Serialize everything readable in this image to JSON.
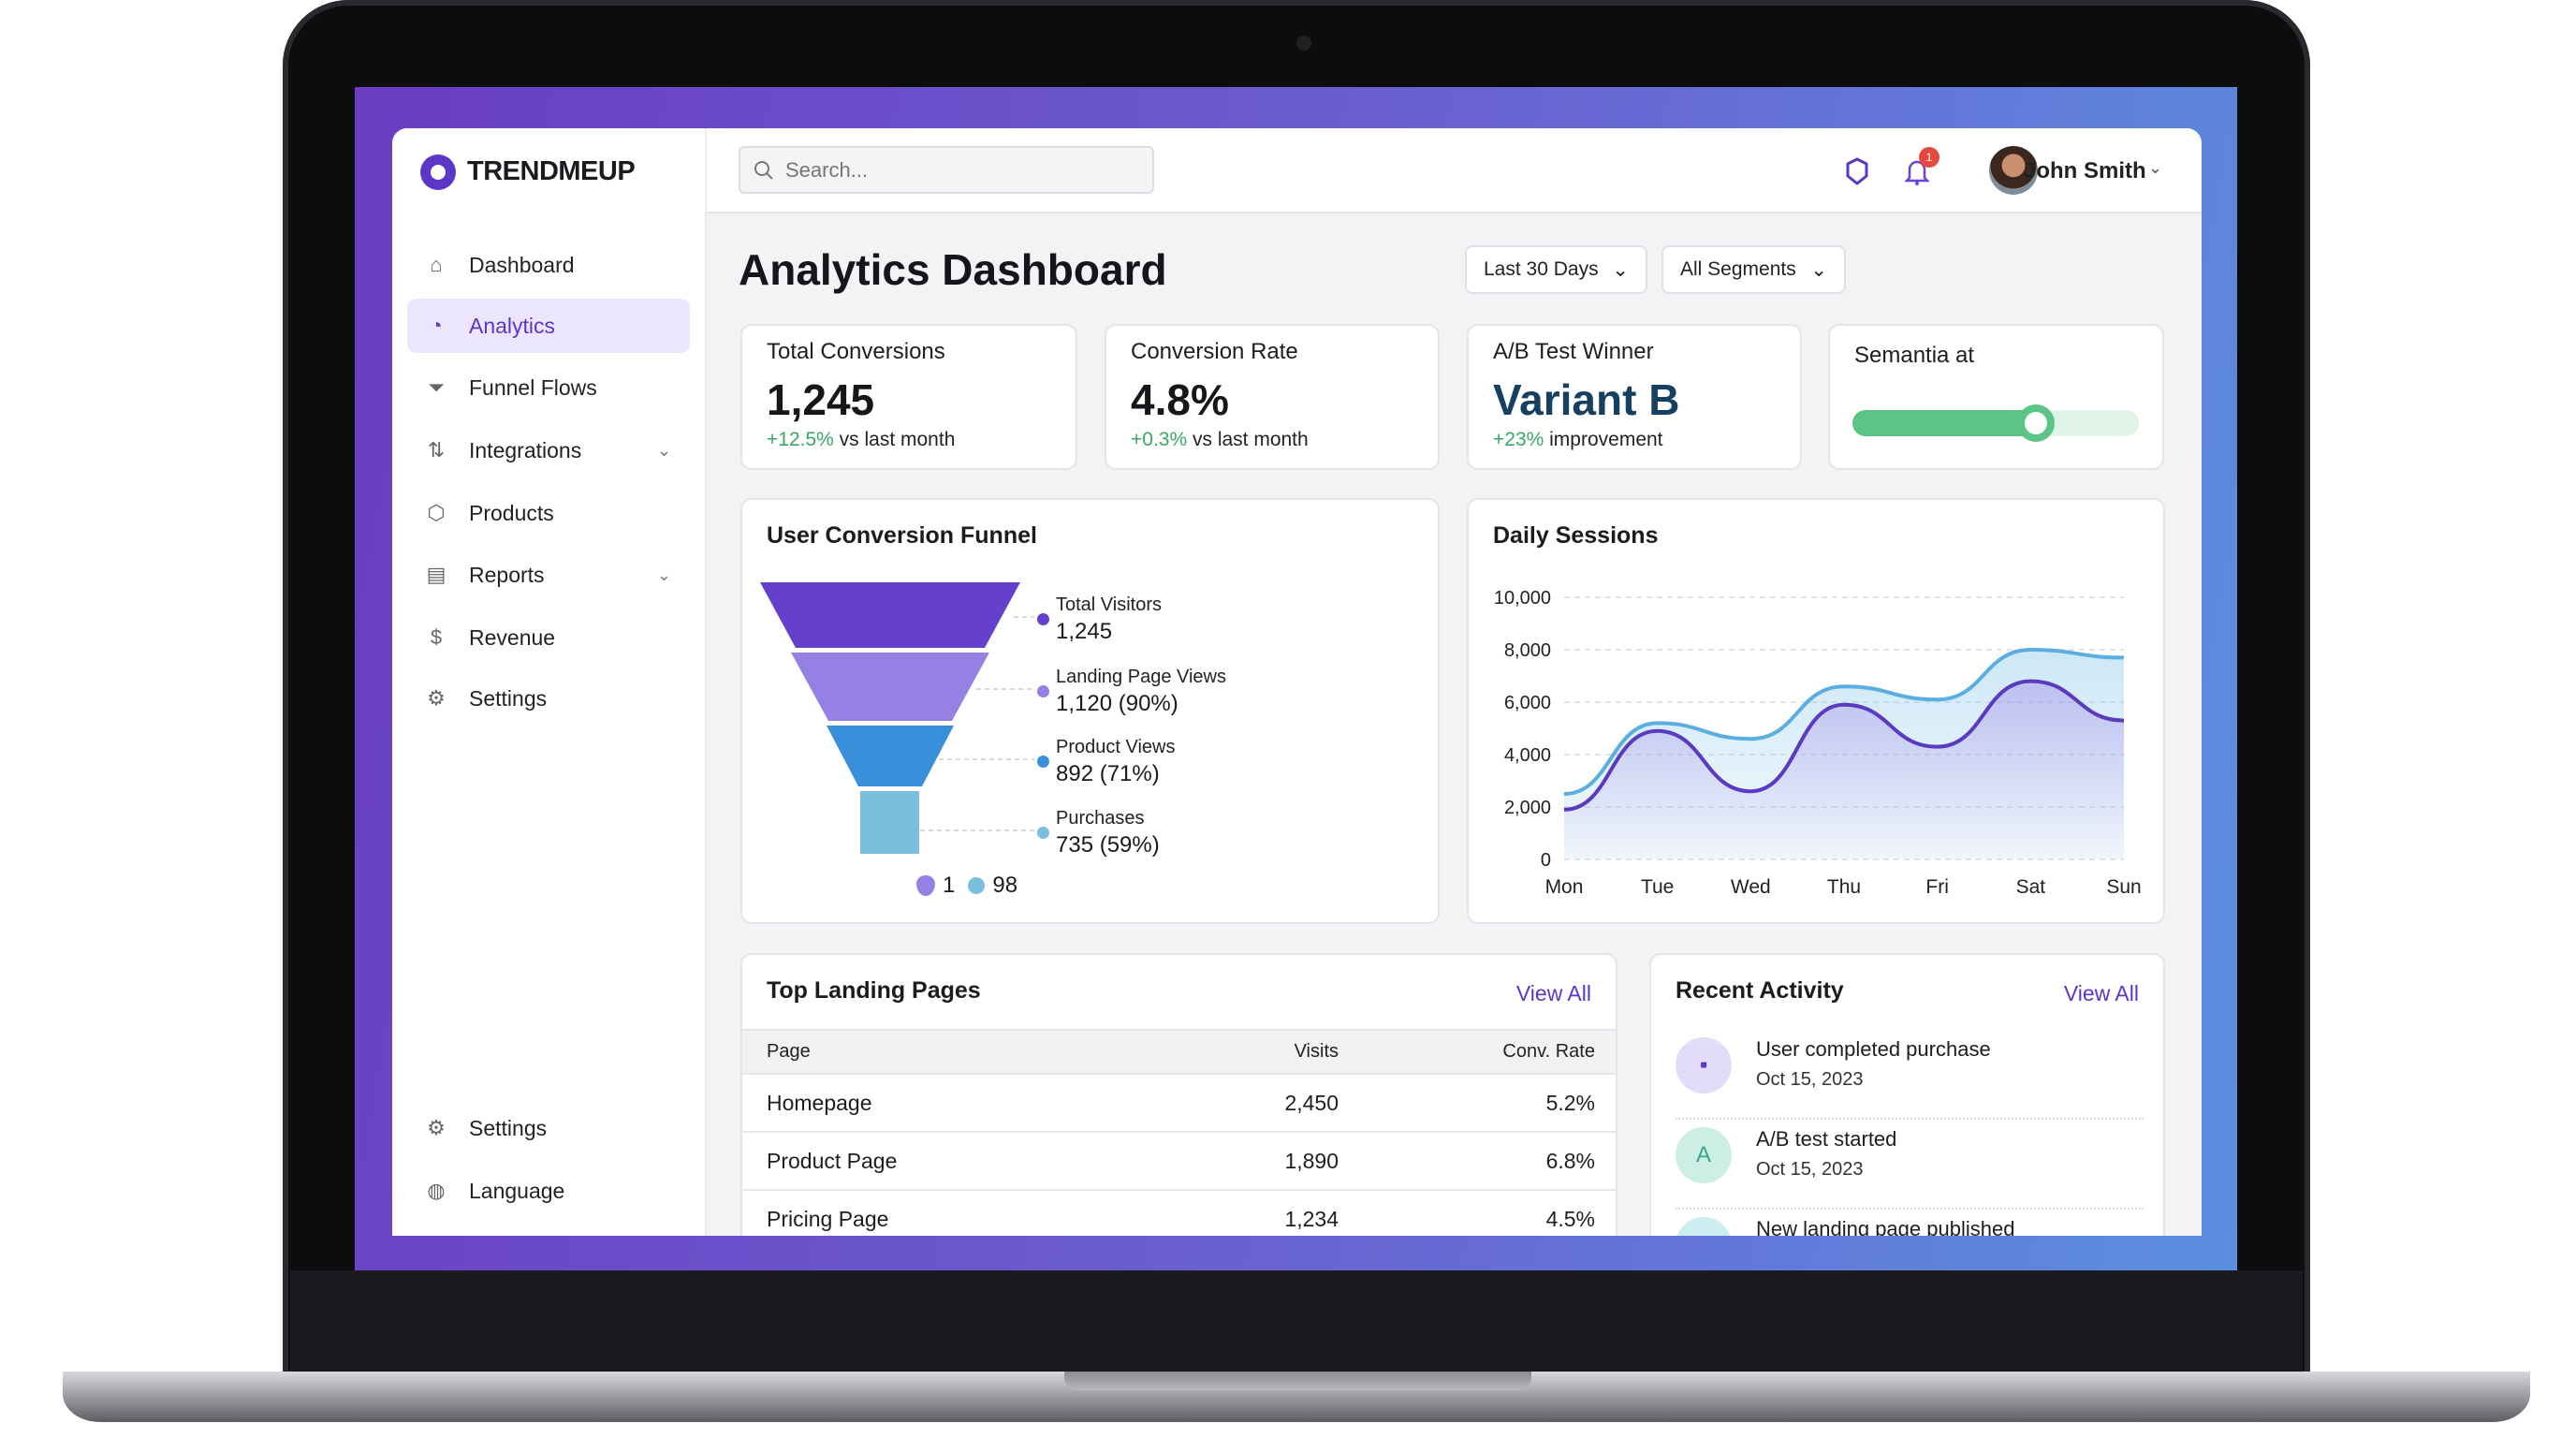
{
  "app": {
    "brand": "TRENDMEUP"
  },
  "search": {
    "placeholder": "Search...",
    "value": ""
  },
  "header": {
    "user_name": "John Smith",
    "notification_count": "1"
  },
  "sidebar": {
    "items": [
      {
        "label": "Dashboard",
        "icon": "home-icon"
      },
      {
        "label": "Analytics",
        "icon": "analytics-icon",
        "active": true
      },
      {
        "label": "Funnel Flows",
        "icon": "funnel-icon"
      },
      {
        "label": "Integrations",
        "icon": "integrations-icon",
        "expandable": true
      },
      {
        "label": "Products",
        "icon": "box-icon"
      },
      {
        "label": "Reports",
        "icon": "report-icon",
        "expandable": true
      },
      {
        "label": "Revenue",
        "icon": "dollar-icon"
      },
      {
        "label": "Settings",
        "icon": "gear-icon"
      }
    ],
    "bottom_items": [
      {
        "label": "Settings",
        "icon": "gear-icon"
      },
      {
        "label": "Language",
        "icon": "globe-icon"
      }
    ]
  },
  "page": {
    "title": "Analytics Dashboard",
    "date_filter": "Last 30 Days",
    "segment_filter": "All Segments"
  },
  "kpis": [
    {
      "label": "Total Conversions",
      "value": "1,245",
      "change": "+12.5%",
      "suffix": "vs last month"
    },
    {
      "label": "Conversion Rate",
      "value": "4.8%",
      "change": "+0.3%",
      "suffix": "vs last month"
    },
    {
      "label": "A/B Test Winner",
      "value": "Variant B",
      "change": "+23%",
      "suffix": "improvement"
    },
    {
      "label": "Semantia at",
      "slider_level": 0.64
    }
  ],
  "colors": {
    "accent": "#5b36c8",
    "positive": "#3aa765",
    "slider": "#5cc486",
    "variant": "#173f5f"
  },
  "chart_data": [
    {
      "type": "funnel",
      "title": "User Conversion Funnel",
      "stages": [
        {
          "label": "Total Visitors",
          "value": 1245,
          "display": "1,245",
          "color": "#6440cc"
        },
        {
          "label": "Landing Page Views",
          "value": 1120,
          "display": "1,120 (90%)",
          "color": "#9580e3"
        },
        {
          "label": "Product Views",
          "value": 892,
          "display": "892 (71%)",
          "color": "#3a8fda"
        },
        {
          "label": "Purchases",
          "value": 735,
          "display": "735 (59%)",
          "color": "#7bbfdf"
        }
      ],
      "footer_legend": [
        {
          "label": "1",
          "color": "#9580e3"
        },
        {
          "label": "98",
          "color": "#7bbfdf"
        }
      ]
    },
    {
      "type": "area",
      "title": "Daily Sessions",
      "categories": [
        "Mon",
        "Tue",
        "Wed",
        "Thu",
        "Fri",
        "Sat",
        "Sun"
      ],
      "ylim": [
        0,
        10000
      ],
      "yticks": [
        "0",
        "2,000",
        "4,000",
        "6,000",
        "8,000",
        "10,000"
      ],
      "grid": true,
      "series": [
        {
          "color": "#5aaee0",
          "values": [
            2500,
            5200,
            4600,
            6600,
            6100,
            8000,
            7700
          ]
        },
        {
          "color": "#5a3ac0",
          "values": [
            1900,
            4900,
            2600,
            5900,
            4300,
            6800,
            5300
          ]
        }
      ]
    }
  ],
  "landing_pages": {
    "title": "Top Landing Pages",
    "view_all": "View All",
    "columns": [
      "Page",
      "Visits",
      "Conv. Rate"
    ],
    "rows": [
      [
        "Homepage",
        "2,450",
        "5.2%"
      ],
      [
        "Product Page",
        "1,890",
        "6.8%"
      ],
      [
        "Pricing Page",
        "1,234",
        "4.5%"
      ]
    ]
  },
  "activity": {
    "title": "Recent Activity",
    "view_all": "View All",
    "items": [
      {
        "text": "User completed purchase",
        "date": "Oct 15, 2023",
        "icon": "wallet-icon"
      },
      {
        "text": "A/B test started",
        "date": "Oct 15, 2023",
        "icon": "A"
      },
      {
        "text": "New landing page published",
        "icon": "page-icon"
      }
    ]
  }
}
